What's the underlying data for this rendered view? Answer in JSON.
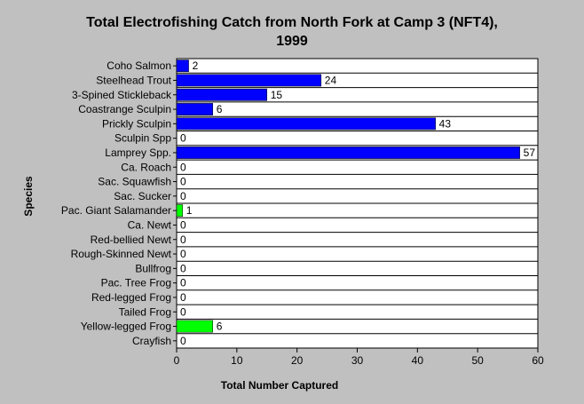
{
  "chart_data": {
    "type": "bar",
    "orientation": "horizontal",
    "title": "Total Electrofishing Catch from North Fork at Camp 3 (NFT4),",
    "subtitle": "1999",
    "xlabel": "Total Number Captured",
    "ylabel": "Species",
    "xlim": [
      0,
      60
    ],
    "xticks": [
      0,
      10,
      20,
      30,
      40,
      50,
      60
    ],
    "grid": "horizontal",
    "legend": "none",
    "categories": [
      "Coho Salmon",
      "Steelhead Trout",
      "3-Spined Stickleback",
      "Coastrange Sculpin",
      "Prickly Sculpin",
      "Sculpin Spp",
      "Lamprey Spp.",
      "Ca. Roach",
      "Sac. Squawfish",
      "Sac. Sucker",
      "Pac. Giant Salamander",
      "Ca. Newt",
      "Red-bellied Newt",
      "Rough-Skinned Newt",
      "Bullfrog",
      "Pac. Tree Frog",
      "Red-legged Frog",
      "Tailed Frog",
      "Yellow-legged Frog",
      "Crayfish"
    ],
    "values": [
      2,
      24,
      15,
      6,
      43,
      0,
      57,
      0,
      0,
      0,
      1,
      0,
      0,
      0,
      0,
      0,
      0,
      0,
      6,
      0
    ],
    "bar_colors": [
      "#0000ff",
      "#0000ff",
      "#0000ff",
      "#0000ff",
      "#0000ff",
      "#0000ff",
      "#0000ff",
      "#0000ff",
      "#0000ff",
      "#0000ff",
      "#00ff00",
      "#00ff00",
      "#00ff00",
      "#00ff00",
      "#00ff00",
      "#00ff00",
      "#00ff00",
      "#00ff00",
      "#00ff00",
      "#0000ff"
    ],
    "colors": {
      "fish": "#0000ff",
      "amphibian": "#00ff00",
      "plot_background": "#ffffff",
      "page_background": "#c0c0c0"
    }
  }
}
